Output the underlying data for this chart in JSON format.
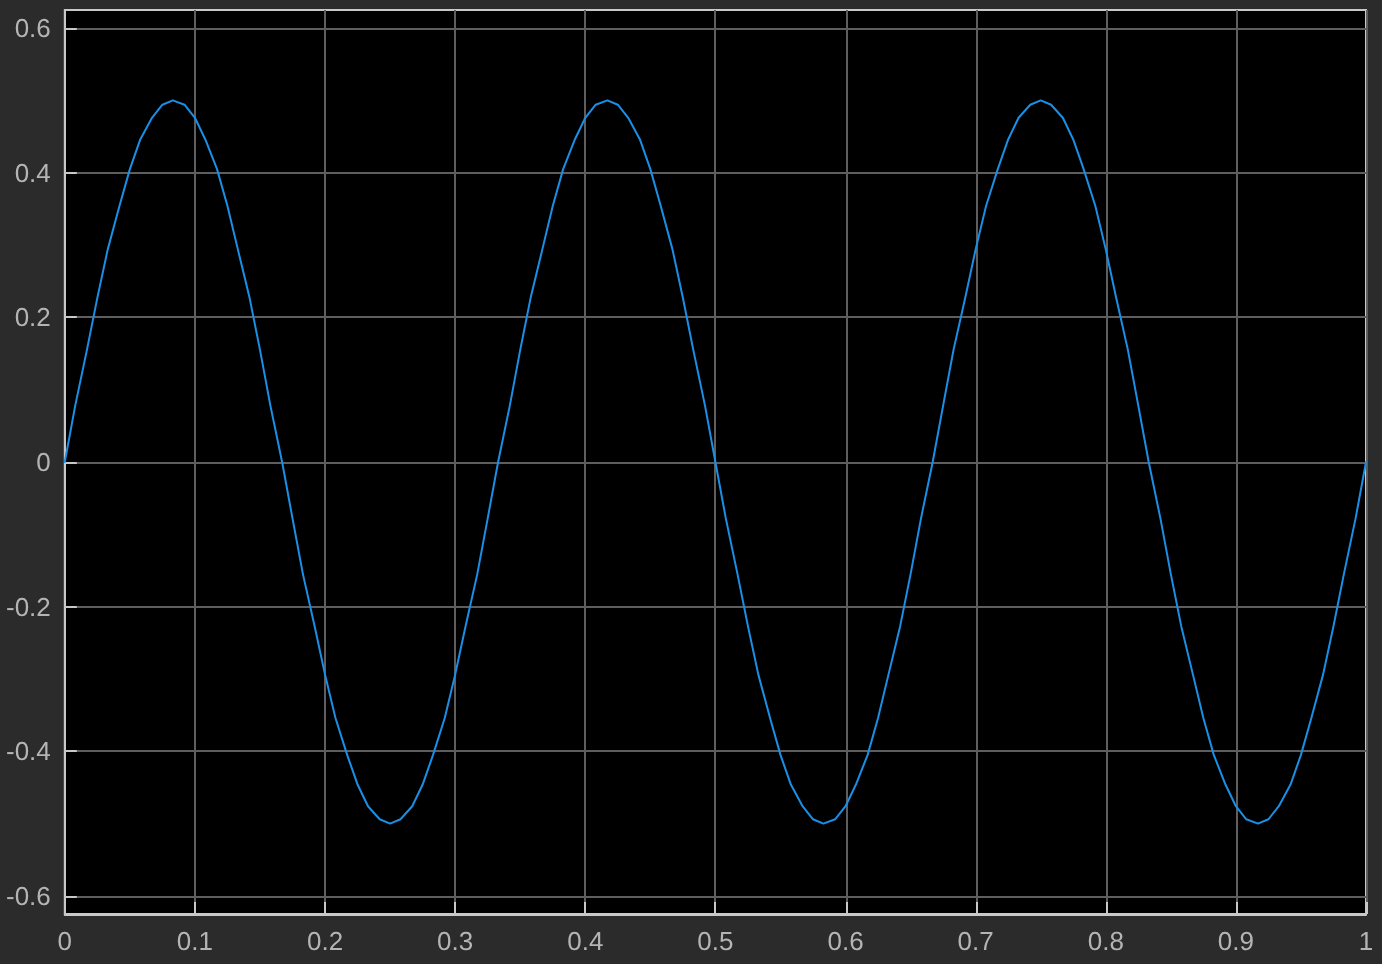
{
  "chart_data": {
    "type": "line",
    "x": [
      0,
      0.008,
      0.017,
      0.025,
      0.033,
      0.042,
      0.05,
      0.058,
      0.067,
      0.075,
      0.083,
      0.092,
      0.1,
      0.108,
      0.117,
      0.125,
      0.133,
      0.142,
      0.15,
      0.158,
      0.167,
      0.175,
      0.183,
      0.192,
      0.2,
      0.208,
      0.217,
      0.225,
      0.233,
      0.242,
      0.25,
      0.258,
      0.267,
      0.275,
      0.283,
      0.292,
      0.3,
      0.308,
      0.317,
      0.325,
      0.333,
      0.342,
      0.35,
      0.358,
      0.367,
      0.375,
      0.383,
      0.392,
      0.4,
      0.408,
      0.417,
      0.425,
      0.433,
      0.442,
      0.45,
      0.458,
      0.467,
      0.475,
      0.483,
      0.492,
      0.5,
      0.508,
      0.517,
      0.525,
      0.533,
      0.542,
      0.55,
      0.558,
      0.567,
      0.575,
      0.583,
      0.592,
      0.6,
      0.608,
      0.617,
      0.625,
      0.633,
      0.642,
      0.65,
      0.658,
      0.667,
      0.675,
      0.683,
      0.692,
      0.7,
      0.708,
      0.717,
      0.725,
      0.733,
      0.742,
      0.75,
      0.758,
      0.767,
      0.775,
      0.783,
      0.792,
      0.8,
      0.808,
      0.817,
      0.825,
      0.833,
      0.842,
      0.85,
      0.858,
      0.867,
      0.875,
      0.883,
      0.892,
      0.9,
      0.908,
      0.917,
      0.925,
      0.933,
      0.942,
      0.95,
      0.958,
      0.967,
      0.975,
      0.983,
      0.992,
      1
    ],
    "series": [
      {
        "color": "#1a8fe6",
        "values": [
          0,
          0.078,
          0.155,
          0.227,
          0.294,
          0.354,
          0.405,
          0.446,
          0.476,
          0.494,
          0.5,
          0.494,
          0.476,
          0.446,
          0.405,
          0.354,
          0.294,
          0.227,
          0.155,
          0.078,
          0,
          -0.078,
          -0.155,
          -0.227,
          -0.294,
          -0.354,
          -0.405,
          -0.446,
          -0.476,
          -0.494,
          -0.5,
          -0.494,
          -0.476,
          -0.446,
          -0.405,
          -0.354,
          -0.294,
          -0.227,
          -0.155,
          -0.078,
          0,
          0.078,
          0.155,
          0.227,
          0.294,
          0.354,
          0.405,
          0.446,
          0.476,
          0.494,
          0.5,
          0.494,
          0.476,
          0.446,
          0.405,
          0.354,
          0.294,
          0.227,
          0.155,
          0.078,
          0,
          -0.078,
          -0.155,
          -0.227,
          -0.294,
          -0.354,
          -0.405,
          -0.446,
          -0.476,
          -0.494,
          -0.5,
          -0.494,
          -0.476,
          -0.446,
          -0.405,
          -0.354,
          -0.294,
          -0.227,
          -0.155,
          -0.078,
          0,
          0.078,
          0.155,
          0.227,
          0.294,
          0.354,
          0.405,
          0.446,
          0.476,
          0.494,
          0.5,
          0.494,
          0.476,
          0.446,
          0.405,
          0.354,
          0.294,
          0.227,
          0.155,
          0.078,
          0,
          -0.078,
          -0.155,
          -0.227,
          -0.294,
          -0.354,
          -0.405,
          -0.446,
          -0.476,
          -0.494,
          -0.5,
          -0.494,
          -0.476,
          -0.446,
          -0.405,
          -0.354,
          -0.294,
          -0.227,
          -0.155,
          -0.078,
          0
        ]
      }
    ],
    "xlim": [
      0,
      1
    ],
    "xticks": [
      0,
      0.1,
      0.2,
      0.3,
      0.4,
      0.5,
      0.6,
      0.7,
      0.8,
      0.9,
      1
    ],
    "ylim": [
      -0.625,
      0.625
    ],
    "yticks": [
      -0.6,
      -0.4,
      -0.2,
      0,
      0.2,
      0.4,
      0.6
    ],
    "grid": true,
    "marker": "none",
    "line_style": "solid"
  }
}
